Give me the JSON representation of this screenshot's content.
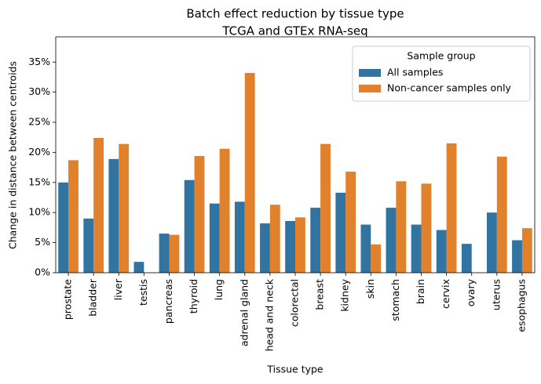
{
  "chart_data": {
    "type": "bar",
    "title": "Batch effect reduction by tissue type",
    "subtitle": "TCGA and GTEx RNA-seq",
    "x_label": "Tissue type",
    "y_label": "Change in distance between centroids",
    "categories": [
      "prostate",
      "bladder",
      "liver",
      "testis",
      "pancreas",
      "thyroid",
      "lung",
      "adrenal gland",
      "head and neck",
      "colorectal",
      "breast",
      "kidney",
      "skin",
      "stomach",
      "brain",
      "cervix",
      "ovary",
      "uterus",
      "esophagus"
    ],
    "series": [
      {
        "name": "All samples",
        "color": "#3274a1",
        "values": [
          15.0,
          9.0,
          18.9,
          1.8,
          6.5,
          15.4,
          11.5,
          11.8,
          8.2,
          8.6,
          10.8,
          13.3,
          8.0,
          10.8,
          8.0,
          7.1,
          4.8,
          10.0,
          5.4
        ]
      },
      {
        "name": "Non-cancer samples only",
        "color": "#e1812c",
        "values": [
          18.7,
          22.4,
          21.4,
          0,
          6.3,
          19.4,
          20.6,
          33.2,
          11.3,
          9.2,
          21.4,
          16.8,
          4.7,
          15.2,
          14.8,
          21.5,
          0,
          19.3,
          7.4
        ]
      }
    ],
    "ylim": [
      0,
      39.2
    ],
    "yticks": [
      {
        "value": 0,
        "label": "0%"
      },
      {
        "value": 5,
        "label": "5%"
      },
      {
        "value": 10,
        "label": "10%"
      },
      {
        "value": 15,
        "label": "15%"
      },
      {
        "value": 20,
        "label": "20%"
      },
      {
        "value": 25,
        "label": "25%"
      },
      {
        "value": 30,
        "label": "30%"
      },
      {
        "value": 35,
        "label": "35%"
      }
    ],
    "legend_title": "Sample group",
    "legend_position": "upper right",
    "grid": false
  }
}
